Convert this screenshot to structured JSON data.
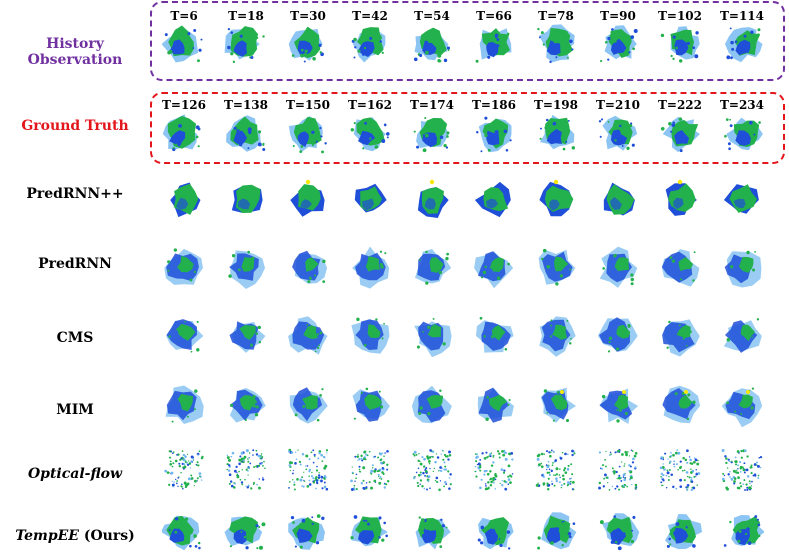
{
  "figure": {
    "history_label": "History Observation",
    "ground_truth_label": "Ground Truth",
    "history_times": [
      "T=6",
      "T=18",
      "T=30",
      "T=42",
      "T=54",
      "T=66",
      "T=78",
      "T=90",
      "T=102",
      "T=114"
    ],
    "truth_times": [
      "T=126",
      "T=138",
      "T=150",
      "T=162",
      "T=174",
      "T=186",
      "T=198",
      "T=210",
      "T=222",
      "T=234"
    ],
    "rows": [
      {
        "id": "history",
        "label": "History Observation",
        "style": "observed"
      },
      {
        "id": "truth",
        "label": "Ground Truth",
        "style": "observed"
      },
      {
        "id": "predrnnpp",
        "label": "PredRNN++",
        "style": "smooth"
      },
      {
        "id": "predrnn",
        "label": "PredRNN",
        "style": "blue"
      },
      {
        "id": "cms",
        "label": "CMS",
        "style": "blue"
      },
      {
        "id": "mim",
        "label": "MIM",
        "style": "blue"
      },
      {
        "id": "optical",
        "label": "Optical-flow",
        "label_italic": "Optical-flow",
        "style": "noisy"
      },
      {
        "id": "tempee",
        "label_italic": "TempEE",
        "label_suffix": " (Ours)",
        "style": "observed"
      }
    ],
    "colors": {
      "history_box": "#7030a0",
      "truth_box": "#e3161c",
      "green": "#22b14c",
      "blue": "#1f4fd8",
      "light_blue": "#6fb7f0",
      "yellow": "#f7e80c"
    }
  }
}
